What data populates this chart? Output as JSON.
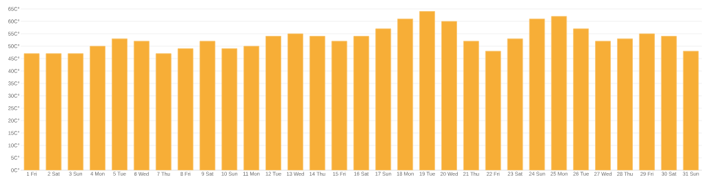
{
  "chart_data": {
    "type": "bar",
    "categories": [
      "1 Fri",
      "2 Sat",
      "3 Sun",
      "4 Mon",
      "5 Tue",
      "6 Wed",
      "7 Thu",
      "8 Fri",
      "9 Sat",
      "10 Sun",
      "11 Mon",
      "12 Tue",
      "13 Wed",
      "14 Thu",
      "15 Fri",
      "16 Sat",
      "17 Sun",
      "18 Mon",
      "19 Tue",
      "20 Wed",
      "21 Thu",
      "22 Fri",
      "23 Sat",
      "24 Sun",
      "25 Mon",
      "26 Tue",
      "27 Wed",
      "28 Thu",
      "29 Fri",
      "30 Sat",
      "31 Sun"
    ],
    "values": [
      47,
      47,
      47,
      50,
      53,
      52,
      47,
      49,
      52,
      49,
      50,
      54,
      55,
      54,
      52,
      54,
      57,
      61,
      64,
      60,
      52,
      48,
      53,
      61,
      62,
      57,
      52,
      53,
      55,
      54,
      48
    ],
    "color": "#f7ae37",
    "ylim": [
      0,
      65
    ],
    "yticks": [
      {
        "value": 0,
        "label": "0C°"
      },
      {
        "value": 5,
        "label": "5C°"
      },
      {
        "value": 10,
        "label": "10C°"
      },
      {
        "value": 15,
        "label": "15C°"
      },
      {
        "value": 20,
        "label": "20C°"
      },
      {
        "value": 25,
        "label": "25C°"
      },
      {
        "value": 30,
        "label": "30C°"
      },
      {
        "value": 35,
        "label": "35C°"
      },
      {
        "value": 40,
        "label": "40C°"
      },
      {
        "value": 45,
        "label": "45C°"
      },
      {
        "value": 50,
        "label": "50C°"
      },
      {
        "value": 55,
        "label": "55C°"
      },
      {
        "value": 60,
        "label": "60C°"
      },
      {
        "value": 65,
        "label": "65C°"
      }
    ],
    "grid": "y"
  }
}
